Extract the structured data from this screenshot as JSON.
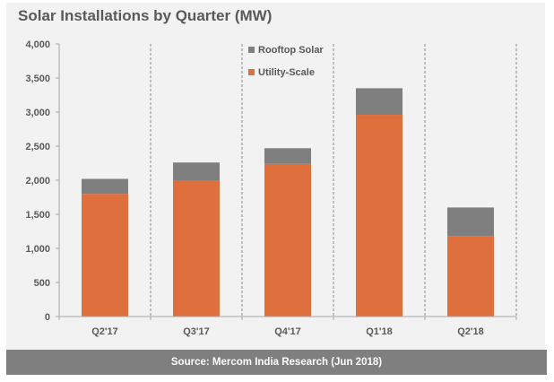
{
  "colors": {
    "utility": "#df703d",
    "rooftop": "#7f7f7f",
    "axis": "#a6a6a6",
    "text": "#595959"
  },
  "chart_data": {
    "type": "bar",
    "stacked": true,
    "title": "Solar Installations by Quarter (MW)",
    "xlabel": "",
    "ylabel": "",
    "categories": [
      "Q2'17",
      "Q3'17",
      "Q4'17",
      "Q1'18",
      "Q2'18"
    ],
    "series": [
      {
        "name": "Utility-Scale",
        "values": [
          1800,
          2000,
          2240,
          2960,
          1180
        ]
      },
      {
        "name": "Rooftop Solar",
        "values": [
          220,
          260,
          230,
          390,
          420
        ]
      }
    ],
    "ylim": [
      0,
      4000
    ],
    "yticks": [
      0,
      500,
      1000,
      1500,
      2000,
      2500,
      3000,
      3500,
      4000
    ],
    "ytick_labels": [
      "0",
      "500",
      "1,000",
      "1,500",
      "2,000",
      "2,500",
      "3,000",
      "3,500",
      "4,000"
    ],
    "legend": {
      "placement": "top-center",
      "entries": [
        "Rooftop Solar",
        "Utility-Scale"
      ]
    },
    "grid": false,
    "category_separators": "dashed-vertical"
  },
  "footer": {
    "source": "Source: Mercom India Research (Jun 2018)"
  }
}
